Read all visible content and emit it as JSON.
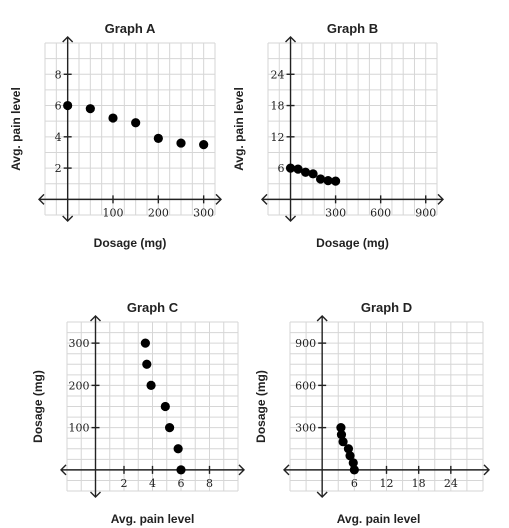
{
  "chart_data": [
    {
      "type": "scatter",
      "title": "Graph A",
      "xlabel": "Dosage (mg)",
      "ylabel": "Avg. pain level",
      "xlim": [
        -50,
        325
      ],
      "ylim": [
        -1,
        10
      ],
      "xgrid_step": 25,
      "ygrid_step": 1,
      "xticks": [
        100,
        200,
        300
      ],
      "yticks": [
        2,
        4,
        6,
        8
      ],
      "x": [
        0,
        50,
        100,
        150,
        200,
        250,
        300
      ],
      "y": [
        6,
        5.8,
        5.2,
        4.9,
        3.9,
        3.6,
        3.5
      ],
      "grid": true
    },
    {
      "type": "scatter",
      "title": "Graph B",
      "xlabel": "Dosage (mg)",
      "ylabel": "Avg. pain level",
      "xlim": [
        -150,
        975
      ],
      "ylim": [
        -3,
        30
      ],
      "xgrid_step": 75,
      "ygrid_step": 3,
      "xticks": [
        300,
        600,
        900
      ],
      "yticks": [
        6,
        12,
        18,
        24
      ],
      "x": [
        0,
        50,
        100,
        150,
        200,
        250,
        300
      ],
      "y": [
        6,
        5.8,
        5.2,
        4.9,
        3.9,
        3.6,
        3.5
      ],
      "grid": true
    },
    {
      "type": "scatter",
      "title": "Graph C",
      "xlabel": "Avg. pain level",
      "ylabel": "Dosage (mg)",
      "xlim": [
        -2,
        10
      ],
      "ylim": [
        -50,
        350
      ],
      "xgrid_step": 1,
      "ygrid_step": 25,
      "xticks": [
        2,
        4,
        6,
        8
      ],
      "yticks": [
        100,
        200,
        300
      ],
      "x": [
        6,
        5.8,
        5.2,
        4.9,
        3.9,
        3.6,
        3.5
      ],
      "y": [
        0,
        50,
        100,
        150,
        200,
        250,
        300
      ],
      "grid": true
    },
    {
      "type": "scatter",
      "title": "Graph D",
      "xlabel": "Avg. pain level",
      "ylabel": "Dosage (mg)",
      "xlim": [
        -6,
        30
      ],
      "ylim": [
        -150,
        1050
      ],
      "xgrid_step": 3,
      "ygrid_step": 75,
      "xticks": [
        6,
        12,
        18,
        24
      ],
      "yticks": [
        300,
        600,
        900
      ],
      "x": [
        6,
        5.8,
        5.2,
        4.9,
        3.9,
        3.6,
        3.5
      ],
      "y": [
        0,
        50,
        100,
        150,
        200,
        250,
        300
      ],
      "grid": true
    }
  ]
}
